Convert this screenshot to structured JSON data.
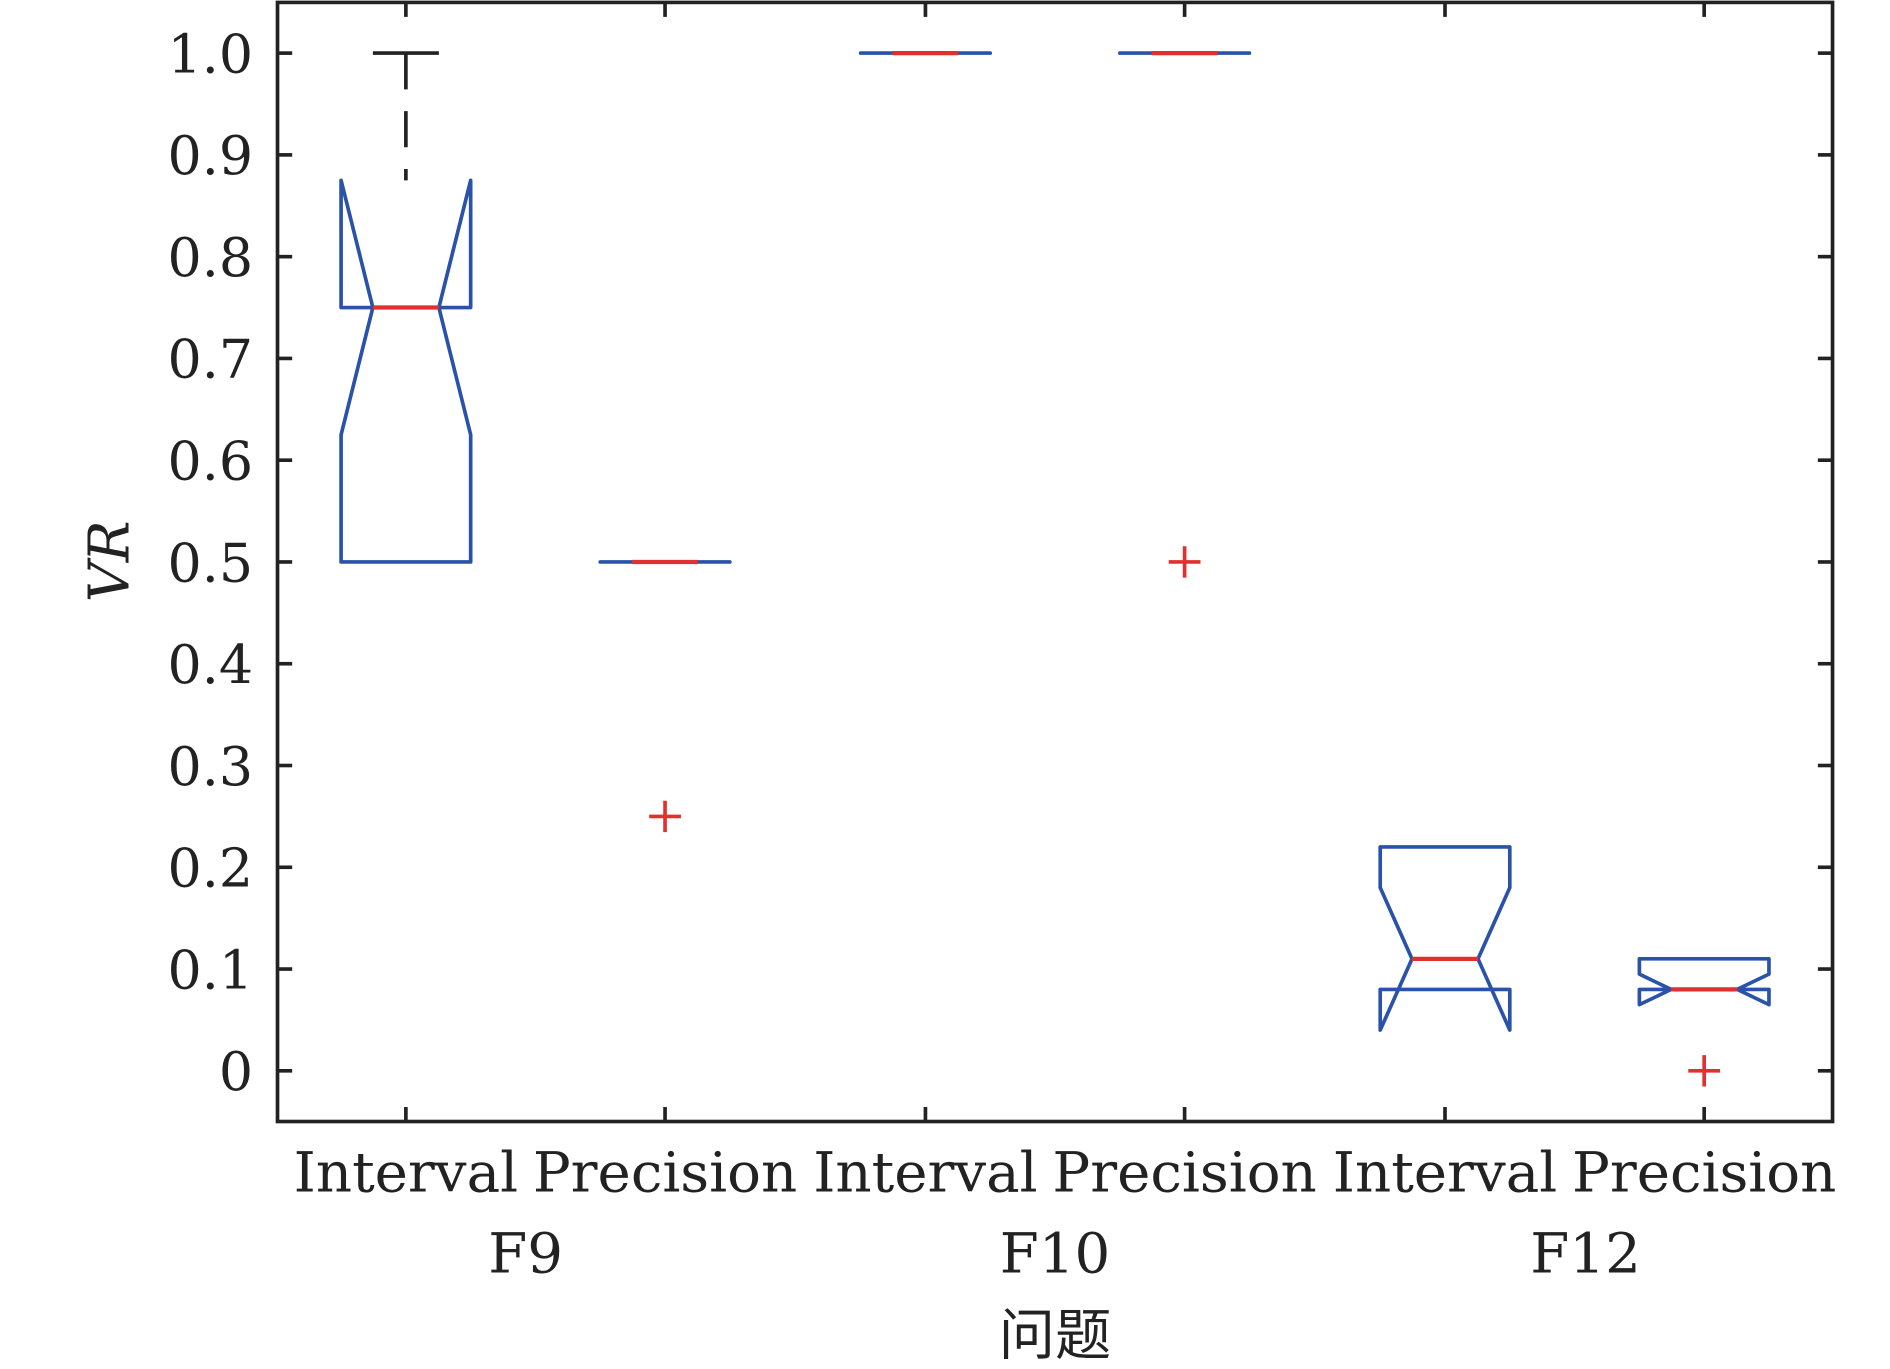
{
  "chart_data": {
    "type": "boxplot",
    "title": "",
    "xlabel": "问题",
    "ylabel": "VR",
    "ylim": [
      -0.05,
      1.05
    ],
    "yticks": [
      0,
      0.1,
      0.2,
      0.3,
      0.4,
      0.5,
      0.6,
      0.7,
      0.8,
      0.9,
      1.0
    ],
    "ytick_labels": [
      "0",
      "0.1",
      "0.2",
      "0.3",
      "0.4",
      "0.5",
      "0.6",
      "0.7",
      "0.8",
      "0.9",
      "1.0"
    ],
    "groups": [
      "F9",
      "F10",
      "F12"
    ],
    "notched": true,
    "colors": {
      "box": "#2a52a8",
      "median": "#e03030",
      "whisker": "#222222",
      "outlier": "#e03030"
    },
    "boxes": [
      {
        "group": "F9",
        "label": "Interval",
        "whisker_low": 0.5,
        "q1": 0.5,
        "median": 0.75,
        "q3": 0.75,
        "whisker_high": 1.0,
        "notch_low": 0.625,
        "notch_high": 0.875,
        "outliers": []
      },
      {
        "group": "F9",
        "label": "Precision",
        "whisker_low": 0.5,
        "q1": 0.5,
        "median": 0.5,
        "q3": 0.5,
        "whisker_high": 0.5,
        "notch_low": 0.5,
        "notch_high": 0.5,
        "outliers": [
          0.25
        ]
      },
      {
        "group": "F10",
        "label": "Interval",
        "whisker_low": 1.0,
        "q1": 1.0,
        "median": 1.0,
        "q3": 1.0,
        "whisker_high": 1.0,
        "notch_low": 1.0,
        "notch_high": 1.0,
        "outliers": []
      },
      {
        "group": "F10",
        "label": "Precision",
        "whisker_low": 1.0,
        "q1": 1.0,
        "median": 1.0,
        "q3": 1.0,
        "whisker_high": 1.0,
        "notch_low": 1.0,
        "notch_high": 1.0,
        "outliers": [
          0.5
        ]
      },
      {
        "group": "F12",
        "label": "Interval",
        "whisker_low": 0.08,
        "q1": 0.08,
        "median": 0.11,
        "q3": 0.22,
        "whisker_high": 0.22,
        "notch_low": 0.04,
        "notch_high": 0.18,
        "outliers": []
      },
      {
        "group": "F12",
        "label": "Precision",
        "whisker_low": 0.08,
        "q1": 0.08,
        "median": 0.08,
        "q3": 0.11,
        "whisker_high": 0.11,
        "notch_low": 0.065,
        "notch_high": 0.095,
        "outliers": [
          0
        ]
      }
    ]
  }
}
